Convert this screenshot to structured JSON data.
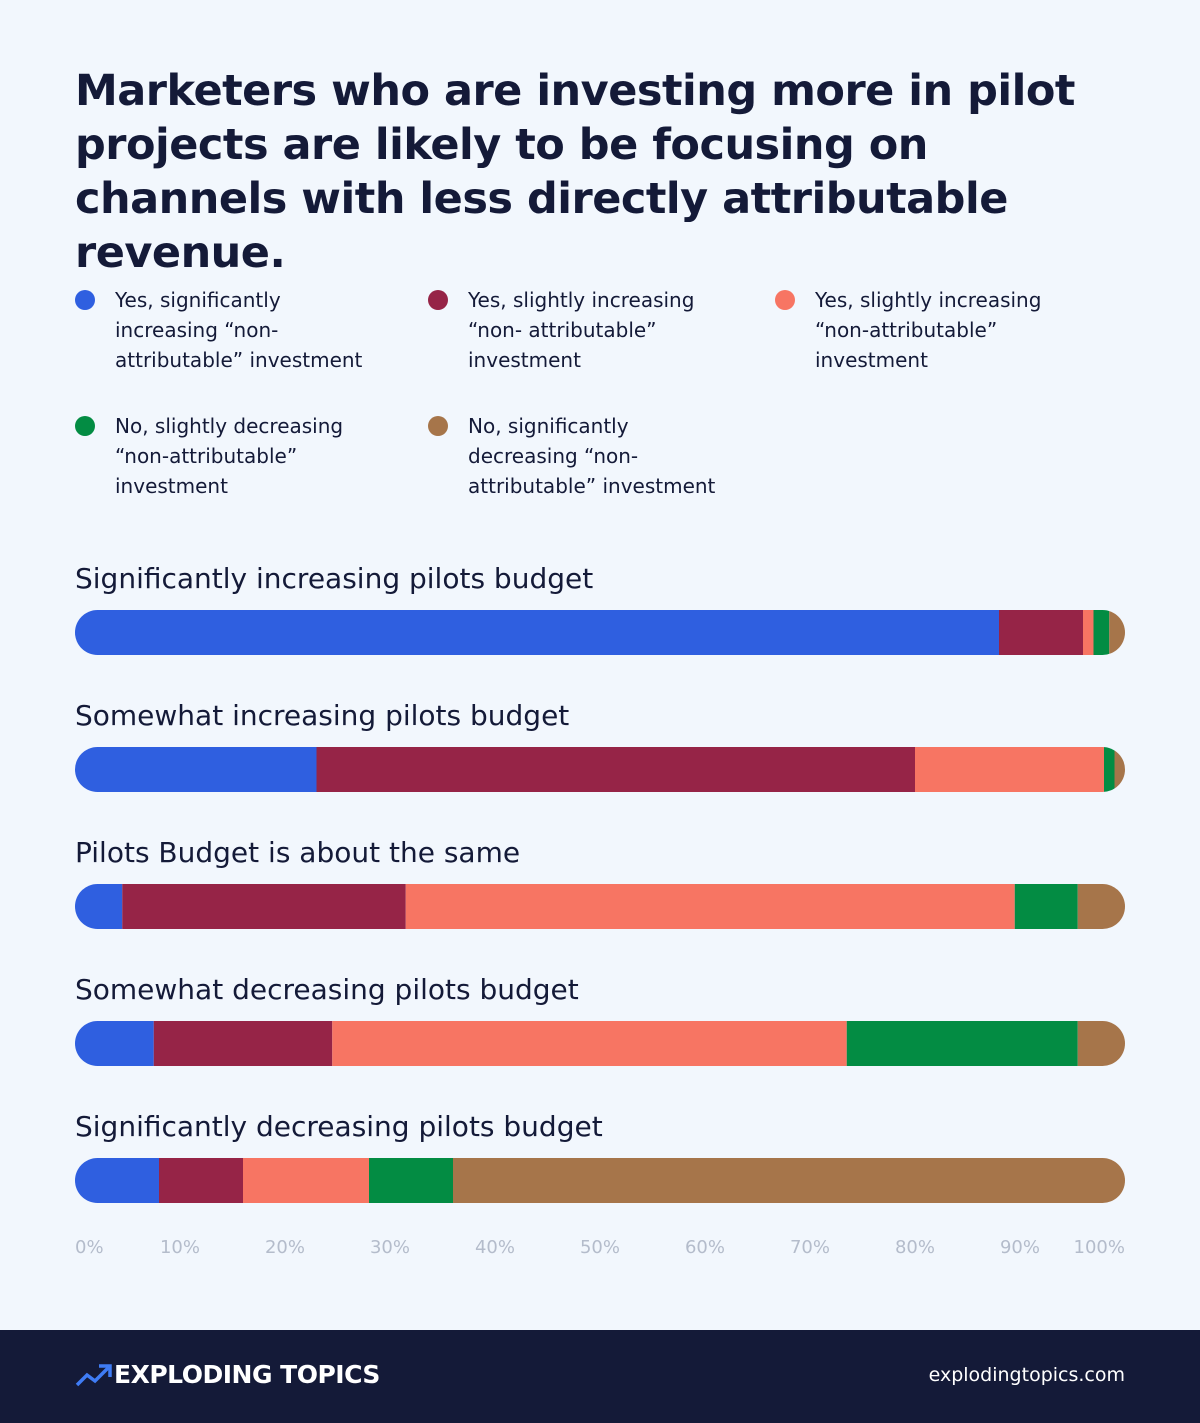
{
  "chart_data": {
    "type": "bar",
    "orientation": "horizontal",
    "stacked": true,
    "title": "Marketers who are investing more in pilot projects are likely to be focusing on channels with less directly attributable revenue.",
    "categories": [
      "Significantly increasing pilots budget",
      "Somewhat increasing pilots budget",
      "Pilots Budget is about the same",
      "Somewhat decreasing pilots budget",
      "Significantly decreasing pilots budget"
    ],
    "series": [
      {
        "name": "Yes, significantly increasing “non-attributable” investment",
        "color": "#2f5fe0",
        "values": [
          88,
          23,
          4.5,
          7.5,
          8
        ]
      },
      {
        "name": "Yes, slightly increasing “non- attributable” investment",
        "color": "#962447",
        "values": [
          8,
          57,
          27,
          17,
          8
        ]
      },
      {
        "name": "Yes, slightly increasing “non-attributable” investment",
        "color": "#f77563",
        "values": [
          1,
          18,
          58,
          49,
          12
        ]
      },
      {
        "name": "No, slightly decreasing “non-attributable” investment",
        "color": "#038c43",
        "values": [
          1.5,
          1,
          6,
          22,
          8
        ]
      },
      {
        "name": "No, significantly decreasing “non-attributable” investment",
        "color": "#a6754a",
        "values": [
          1.5,
          1,
          4.5,
          4.5,
          64
        ]
      }
    ],
    "xlim": [
      0,
      100
    ],
    "xticks": [
      {
        "value": 0,
        "label": "0%"
      },
      {
        "value": 10,
        "label": "10%"
      },
      {
        "value": 20,
        "label": "20%"
      },
      {
        "value": 30,
        "label": "30%"
      },
      {
        "value": 40,
        "label": "40%"
      },
      {
        "value": 50,
        "label": "50%"
      },
      {
        "value": 60,
        "label": "60%"
      },
      {
        "value": 70,
        "label": "70%"
      },
      {
        "value": 80,
        "label": "80%"
      },
      {
        "value": 90,
        "label": "90%"
      },
      {
        "value": 100,
        "label": "100%"
      }
    ]
  },
  "footer": {
    "brand": "EXPLODING TOPICS",
    "url": "explodingtopics.com"
  }
}
